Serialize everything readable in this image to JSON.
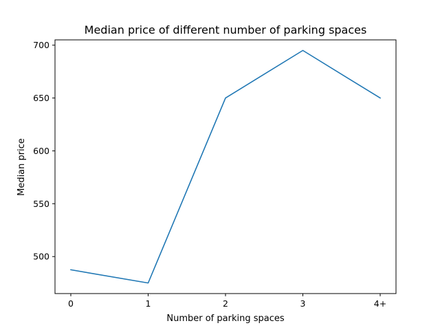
{
  "chart_data": {
    "type": "line",
    "title": "Median price of different number of parking spaces",
    "xlabel": "Number of parking spaces",
    "ylabel": "Median price",
    "categories": [
      "0",
      "1",
      "2",
      "3",
      "4+"
    ],
    "series": [
      {
        "values": [
          487.5,
          475,
          650,
          695,
          650
        ],
        "color": "#1f77b4"
      }
    ],
    "ylim": [
      465,
      705
    ],
    "yticks": [
      500,
      550,
      600,
      650,
      700
    ],
    "grid": false,
    "legend": "none"
  }
}
